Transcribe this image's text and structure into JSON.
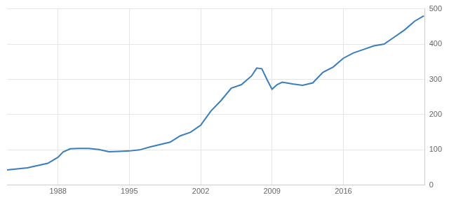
{
  "chart_data": {
    "type": "line",
    "color": "#3a7dbd",
    "grid": true,
    "x": [
      1983,
      1985,
      1987,
      1988,
      1988.5,
      1989.2,
      1990,
      1991,
      1992,
      1993,
      1994,
      1995,
      1996,
      1997,
      1998,
      1999,
      2000,
      2001,
      2002,
      2003,
      2004,
      2005,
      2006,
      2007,
      2007.5,
      2008,
      2008.5,
      2009,
      2009.5,
      2010,
      2011,
      2012,
      2013,
      2014,
      2015,
      2016,
      2017,
      2018,
      2019,
      2020,
      2021,
      2022,
      2023,
      2023.9
    ],
    "values": [
      43,
      49,
      62,
      79,
      94,
      103,
      104,
      104,
      101,
      95,
      96,
      97,
      100,
      108,
      115,
      122,
      140,
      150,
      170,
      210,
      240,
      275,
      285,
      310,
      332,
      330,
      300,
      272,
      285,
      292,
      287,
      283,
      290,
      320,
      335,
      360,
      375,
      385,
      395,
      400,
      420,
      440,
      465,
      480
    ],
    "xlim": [
      1983,
      2024
    ],
    "xticks": [
      1988,
      1995,
      2002,
      2009,
      2016
    ],
    "ylim": [
      0,
      500
    ],
    "yticks": [
      0,
      100,
      200,
      300,
      400,
      500
    ]
  }
}
